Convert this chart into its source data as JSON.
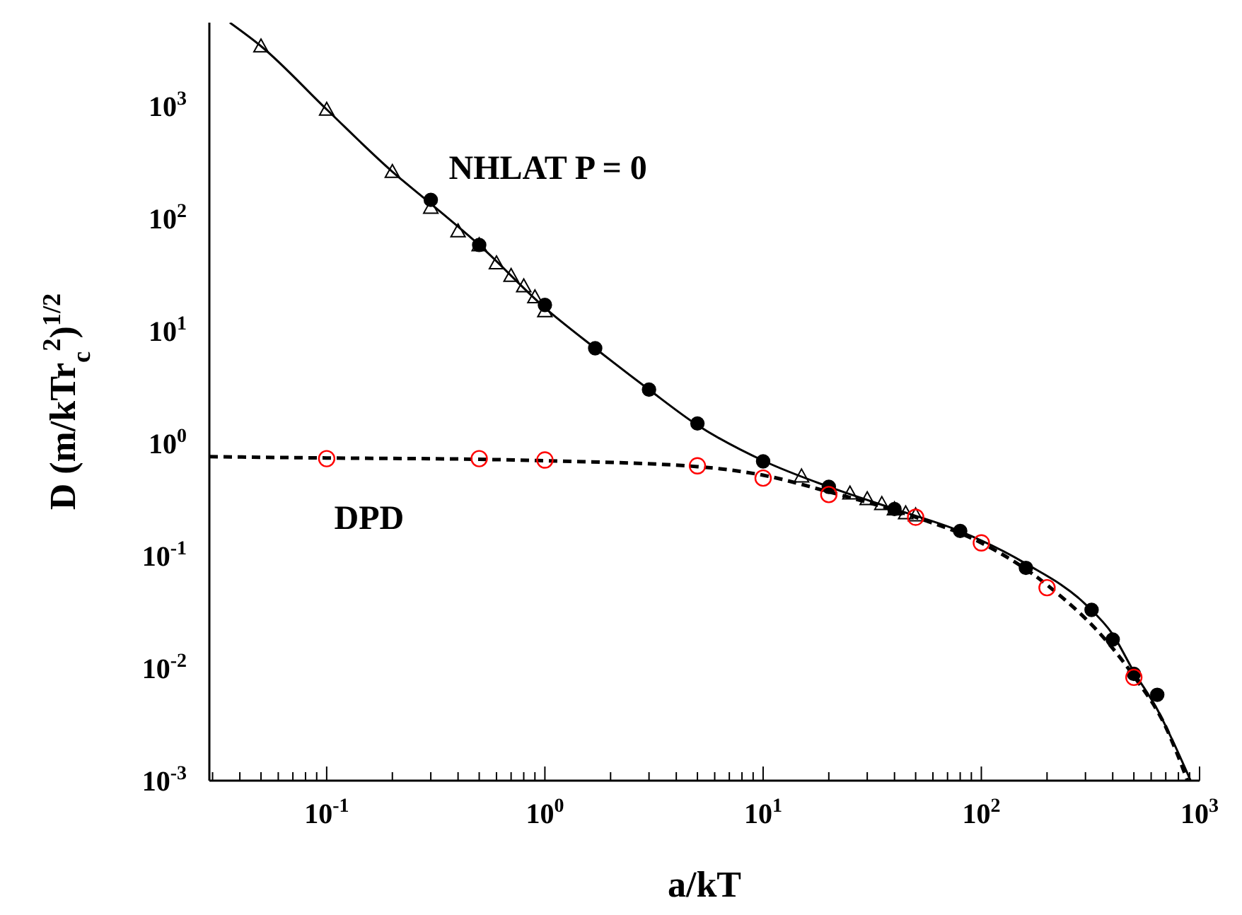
{
  "chart_data": {
    "type": "scatter",
    "xlabel": "a/kT",
    "ylabel": "D (m/kTr$_{c}$$^{2}$)$^{1/2}$",
    "log": "xy",
    "xlim": [
      0.029,
      1000
    ],
    "ylim": [
      0.001,
      5500
    ],
    "xticks": [
      {
        "value": 0.03,
        "label": null
      },
      {
        "value": 0.04,
        "label": null
      },
      {
        "value": 0.05,
        "label": null
      },
      {
        "value": 0.06,
        "label": null
      },
      {
        "value": 0.07,
        "label": null
      },
      {
        "value": 0.08,
        "label": null
      },
      {
        "value": 0.09,
        "label": null
      },
      {
        "value": 0.1,
        "label": "10$^{-1}$"
      },
      {
        "value": 0.2,
        "label": null
      },
      {
        "value": 0.3,
        "label": null
      },
      {
        "value": 0.4,
        "label": null
      },
      {
        "value": 0.5,
        "label": null
      },
      {
        "value": 0.6,
        "label": null
      },
      {
        "value": 0.7,
        "label": null
      },
      {
        "value": 0.8,
        "label": null
      },
      {
        "value": 0.9,
        "label": null
      },
      {
        "value": 1,
        "label": "10$^{0}$"
      },
      {
        "value": 2,
        "label": null
      },
      {
        "value": 3,
        "label": null
      },
      {
        "value": 4,
        "label": null
      },
      {
        "value": 5,
        "label": null
      },
      {
        "value": 6,
        "label": null
      },
      {
        "value": 7,
        "label": null
      },
      {
        "value": 8,
        "label": null
      },
      {
        "value": 9,
        "label": null
      },
      {
        "value": 10,
        "label": "10$^{1}$"
      },
      {
        "value": 20,
        "label": null
      },
      {
        "value": 30,
        "label": null
      },
      {
        "value": 40,
        "label": null
      },
      {
        "value": 50,
        "label": null
      },
      {
        "value": 60,
        "label": null
      },
      {
        "value": 70,
        "label": null
      },
      {
        "value": 80,
        "label": null
      },
      {
        "value": 90,
        "label": null
      },
      {
        "value": 100,
        "label": "10$^{2}$"
      },
      {
        "value": 200,
        "label": null
      },
      {
        "value": 300,
        "label": null
      },
      {
        "value": 400,
        "label": null
      },
      {
        "value": 500,
        "label": null
      },
      {
        "value": 600,
        "label": null
      },
      {
        "value": 700,
        "label": null
      },
      {
        "value": 800,
        "label": null
      },
      {
        "value": 900,
        "label": null
      },
      {
        "value": 1000,
        "label": "10$^{3}$"
      }
    ],
    "yticks": [
      {
        "value": 0.001,
        "label": "10$^{-3}$"
      },
      {
        "value": 0.01,
        "label": "10$^{-2}$"
      },
      {
        "value": 0.1,
        "label": "10$^{-1}$"
      },
      {
        "value": 1,
        "label": "10$^{0}$"
      },
      {
        "value": 10,
        "label": "10$^{1}$"
      },
      {
        "value": 100,
        "label": "10$^{2}$"
      },
      {
        "value": 1000,
        "label": "10$^{3}$"
      }
    ],
    "series": [
      {
        "type": "line",
        "name": "NHLAT P = 0",
        "color": "#000000",
        "line_style": "solid",
        "marker": "none",
        "x": [
          0.036,
          0.05,
          0.1,
          0.2,
          0.3,
          0.5,
          1,
          1.7,
          3,
          5,
          10,
          20,
          40,
          80,
          160,
          300,
          400,
          500,
          640,
          750,
          910
        ],
        "values": [
          5500,
          3400,
          930,
          260,
          135,
          58,
          16,
          7,
          3,
          1.45,
          0.7,
          0.41,
          0.26,
          0.165,
          0.085,
          0.037,
          0.02,
          0.0093,
          0.0043,
          0.0023,
          0.001
        ]
      },
      {
        "type": "line",
        "name": "DPD",
        "color": "#000000",
        "line_style": "dashed",
        "marker": "none",
        "x": [
          0.029,
          0.1,
          0.5,
          1,
          5,
          10,
          20,
          50,
          100,
          200,
          400,
          500,
          700,
          880
        ],
        "values": [
          0.76,
          0.74,
          0.72,
          0.7,
          0.62,
          0.52,
          0.37,
          0.22,
          0.13,
          0.055,
          0.015,
          0.0085,
          0.003,
          0.001
        ]
      },
      {
        "color": "#000000",
        "marker": "triangle",
        "x": [
          0.05,
          0.1,
          0.2,
          0.3,
          0.4,
          0.5,
          0.6,
          0.7,
          0.8,
          0.9,
          1,
          15,
          25,
          30,
          35,
          40,
          45,
          50
        ],
        "values": [
          3400,
          930,
          260,
          125,
          77,
          58,
          40,
          31,
          25,
          20,
          15,
          0.51,
          0.36,
          0.32,
          0.29,
          0.26,
          0.24,
          0.23
        ]
      },
      {
        "color": "#000000",
        "marker": "circle",
        "x": [
          0.3,
          0.5,
          1,
          1.7,
          3,
          5,
          10,
          20,
          40,
          80,
          160,
          320,
          400,
          500,
          640
        ],
        "values": [
          146,
          58,
          17,
          7,
          3,
          1.5,
          0.69,
          0.41,
          0.26,
          0.166,
          0.078,
          0.033,
          0.018,
          0.0089,
          0.0058
        ]
      },
      {
        "color": "#ff0000",
        "marker": "circle",
        "x": [
          0.1,
          0.5,
          1,
          5,
          10,
          20,
          50,
          100,
          200,
          500
        ],
        "values": [
          0.73,
          0.73,
          0.71,
          0.63,
          0.49,
          0.35,
          0.22,
          0.13,
          0.052,
          0.0083
        ]
      }
    ]
  }
}
